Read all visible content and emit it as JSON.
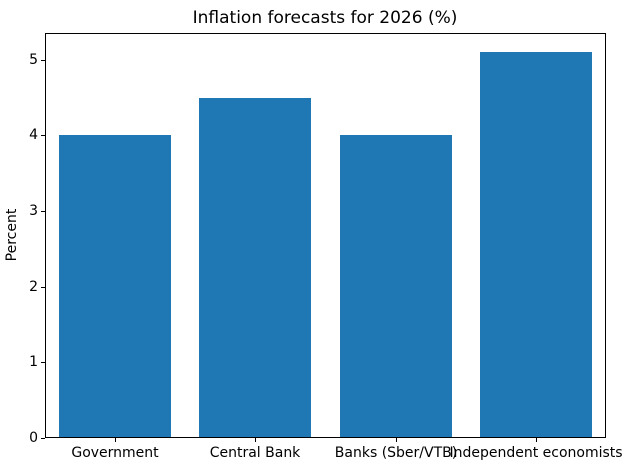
{
  "chart_data": {
    "type": "bar",
    "title": "Inflation forecasts for 2026 (%)",
    "xlabel": "",
    "ylabel": "Percent",
    "categories": [
      "Government",
      "Central Bank",
      "Banks (Sber/VTB)",
      "Independent economists"
    ],
    "values": [
      4.0,
      4.5,
      4.0,
      5.1
    ],
    "yticks": [
      0,
      1,
      2,
      3,
      4,
      5
    ],
    "ylim": [
      0,
      5.355
    ],
    "bar_color": "#1f77b4",
    "axis_color": "#000000",
    "background_color": "#ffffff",
    "grid": false,
    "legend": "none",
    "bar_width_fraction": 0.8
  }
}
